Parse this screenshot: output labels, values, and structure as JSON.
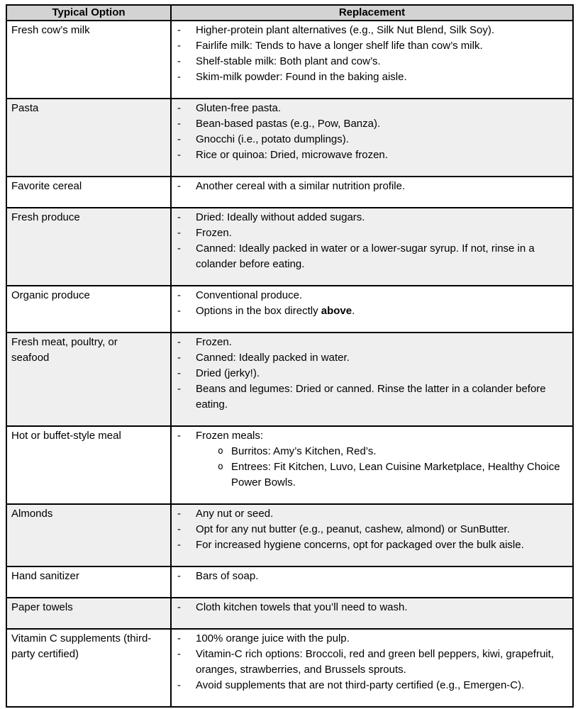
{
  "colors": {
    "header_bg": "#d3d3d3",
    "shaded_row_bg": "#efefef",
    "border": "#000000",
    "text": "#000000"
  },
  "markers": {
    "dash": "-",
    "circle": "o"
  },
  "table": {
    "columns": [
      {
        "label": "Typical Option"
      },
      {
        "label": "Replacement"
      }
    ],
    "rows": [
      {
        "option": "Fresh cow’s milk",
        "shaded": false,
        "items": [
          {
            "sub": false,
            "segments": [
              {
                "text": "Higher-protein plant alternatives (e.g., Silk Nut Blend, Silk Soy)."
              }
            ]
          },
          {
            "sub": false,
            "segments": [
              {
                "text": "Fairlife milk: Tends to have a longer shelf life than cow’s milk."
              }
            ]
          },
          {
            "sub": false,
            "segments": [
              {
                "text": "Shelf-stable milk: Both plant and cow’s."
              }
            ]
          },
          {
            "sub": false,
            "segments": [
              {
                "text": "Skim-milk powder: Found in the baking aisle."
              }
            ]
          }
        ]
      },
      {
        "option": "Pasta",
        "shaded": true,
        "items": [
          {
            "sub": false,
            "segments": [
              {
                "text": "Gluten-free pasta."
              }
            ]
          },
          {
            "sub": false,
            "segments": [
              {
                "text": "Bean-based pastas (e.g., Pow, Banza)."
              }
            ]
          },
          {
            "sub": false,
            "segments": [
              {
                "text": "Gnocchi (i.e., potato dumplings)."
              }
            ]
          },
          {
            "sub": false,
            "segments": [
              {
                "text": "Rice or quinoa: Dried, microwave frozen."
              }
            ]
          }
        ]
      },
      {
        "option": "Favorite cereal",
        "shaded": false,
        "items": [
          {
            "sub": false,
            "segments": [
              {
                "text": "Another cereal with a similar nutrition profile."
              }
            ]
          }
        ]
      },
      {
        "option": "Fresh produce",
        "shaded": true,
        "items": [
          {
            "sub": false,
            "segments": [
              {
                "text": "Dried: Ideally without added sugars."
              }
            ]
          },
          {
            "sub": false,
            "segments": [
              {
                "text": "Frozen."
              }
            ]
          },
          {
            "sub": false,
            "segments": [
              {
                "text": "Canned: Ideally packed in water or a lower-sugar syrup. If not, rinse in a colander before eating."
              }
            ]
          }
        ]
      },
      {
        "option": "Organic produce",
        "shaded": false,
        "items": [
          {
            "sub": false,
            "segments": [
              {
                "text": "Conventional produce."
              }
            ]
          },
          {
            "sub": false,
            "segments": [
              {
                "text": "Options in the box directly "
              },
              {
                "text": "above",
                "bold": true
              },
              {
                "text": "."
              }
            ]
          }
        ]
      },
      {
        "option": "Fresh meat, poultry, or\nseafood",
        "shaded": true,
        "items": [
          {
            "sub": false,
            "segments": [
              {
                "text": "Frozen."
              }
            ]
          },
          {
            "sub": false,
            "segments": [
              {
                "text": "Canned: Ideally packed in water."
              }
            ]
          },
          {
            "sub": false,
            "segments": [
              {
                "text": "Dried (jerky!)."
              }
            ]
          },
          {
            "sub": false,
            "segments": [
              {
                "text": "Beans and legumes: Dried or canned. Rinse the latter in a colander before eating."
              }
            ]
          }
        ]
      },
      {
        "option": "Hot or buffet-style meal",
        "shaded": false,
        "items": [
          {
            "sub": false,
            "segments": [
              {
                "text": "Frozen meals:"
              }
            ]
          },
          {
            "sub": true,
            "segments": [
              {
                "text": "Burritos: Amy’s Kitchen, Red’s."
              }
            ]
          },
          {
            "sub": true,
            "segments": [
              {
                "text": "Entrees: Fit Kitchen, Luvo, Lean Cuisine Marketplace, Healthy Choice Power Bowls."
              }
            ]
          }
        ]
      },
      {
        "option": "Almonds",
        "shaded": true,
        "items": [
          {
            "sub": false,
            "segments": [
              {
                "text": "Any nut or seed."
              }
            ]
          },
          {
            "sub": false,
            "segments": [
              {
                "text": "Opt for any nut butter (e.g., peanut, cashew, almond) or SunButter."
              }
            ]
          },
          {
            "sub": false,
            "segments": [
              {
                "text": "For increased hygiene concerns, opt for packaged over the bulk aisle."
              }
            ]
          }
        ]
      },
      {
        "option": "Hand sanitizer",
        "shaded": false,
        "items": [
          {
            "sub": false,
            "segments": [
              {
                "text": "Bars of soap."
              }
            ]
          }
        ]
      },
      {
        "option": "Paper towels",
        "shaded": true,
        "items": [
          {
            "sub": false,
            "segments": [
              {
                "text": "Cloth kitchen towels that you’ll need to wash."
              }
            ]
          }
        ]
      },
      {
        "option": "Vitamin C supplements (third-\nparty certified)",
        "shaded": false,
        "items": [
          {
            "sub": false,
            "segments": [
              {
                "text": "100% orange juice with the pulp."
              }
            ]
          },
          {
            "sub": false,
            "segments": [
              {
                "text": "Vitamin-C rich options: Broccoli, red and green bell peppers, kiwi, grapefruit, oranges, strawberries, and Brussels sprouts."
              }
            ]
          },
          {
            "sub": false,
            "segments": [
              {
                "text": "Avoid supplements that are not third-party certified (e.g., Emergen-C)."
              }
            ]
          }
        ]
      }
    ]
  }
}
